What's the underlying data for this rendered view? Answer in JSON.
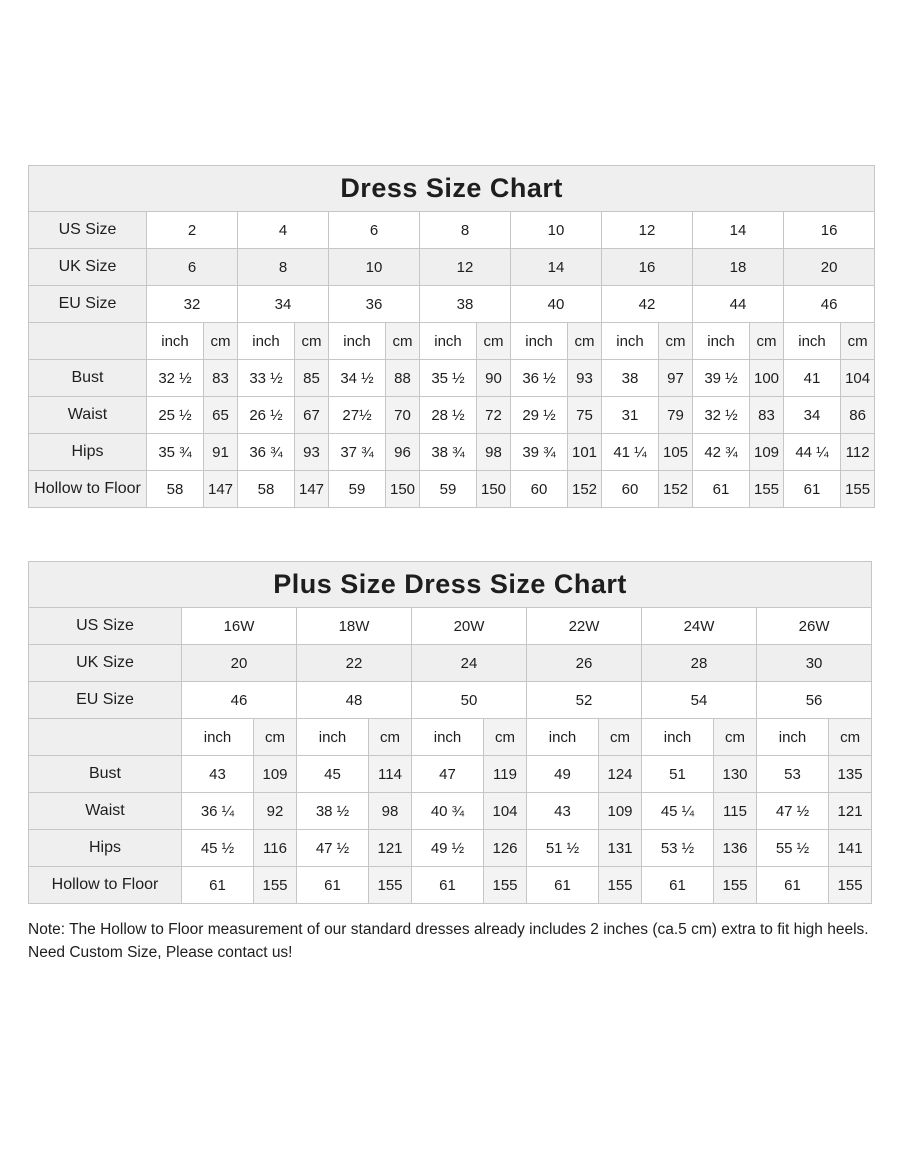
{
  "colors": {
    "header_bg": "#efefef",
    "label_bg": "#efefef",
    "cm_stripe_bg": "#f3f3f3",
    "grid_border": "#c6c6c6",
    "text": "#1e1e1e"
  },
  "tables": [
    {
      "title": "Dress Size Chart",
      "units": {
        "inch": "inch",
        "cm": "cm"
      },
      "size_rows": [
        {
          "label": "US Size",
          "shaded": false,
          "values": [
            "2",
            "4",
            "6",
            "8",
            "10",
            "12",
            "14",
            "16"
          ]
        },
        {
          "label": "UK Size",
          "shaded": true,
          "values": [
            "6",
            "8",
            "10",
            "12",
            "14",
            "16",
            "18",
            "20"
          ]
        },
        {
          "label": "EU Size",
          "shaded": false,
          "values": [
            "32",
            "34",
            "36",
            "38",
            "40",
            "42",
            "44",
            "46"
          ]
        }
      ],
      "measure_rows": [
        {
          "label": "Bust",
          "inch": [
            "32 ½",
            "33 ½",
            "34 ½",
            "35 ½",
            "36 ½",
            "38",
            "39 ½",
            "41"
          ],
          "cm": [
            "83",
            "85",
            "88",
            "90",
            "93",
            "97",
            "100",
            "104"
          ]
        },
        {
          "label": "Waist",
          "inch": [
            "25 ½",
            "26 ½",
            "27½",
            "28 ½",
            "29 ½",
            "31",
            "32 ½",
            "34"
          ],
          "cm": [
            "65",
            "67",
            "70",
            "72",
            "75",
            "79",
            "83",
            "86"
          ]
        },
        {
          "label": "Hips",
          "inch": [
            "35 ¾",
            "36 ¾",
            "37 ¾",
            "38 ¾",
            "39 ¾",
            "41 ¼",
            "42 ¾",
            "44 ¼"
          ],
          "cm": [
            "91",
            "93",
            "96",
            "98",
            "101",
            "105",
            "109",
            "112"
          ]
        },
        {
          "label": "Hollow to Floor",
          "inch": [
            "58",
            "58",
            "59",
            "59",
            "60",
            "60",
            "61",
            "61"
          ],
          "cm": [
            "147",
            "147",
            "150",
            "150",
            "152",
            "152",
            "155",
            "155"
          ]
        }
      ]
    },
    {
      "title": "Plus Size Dress Size Chart",
      "units": {
        "inch": "inch",
        "cm": "cm"
      },
      "size_rows": [
        {
          "label": "US Size",
          "shaded": false,
          "values": [
            "16W",
            "18W",
            "20W",
            "22W",
            "24W",
            "26W"
          ]
        },
        {
          "label": "UK Size",
          "shaded": true,
          "values": [
            "20",
            "22",
            "24",
            "26",
            "28",
            "30"
          ]
        },
        {
          "label": "EU Size",
          "shaded": false,
          "values": [
            "46",
            "48",
            "50",
            "52",
            "54",
            "56"
          ]
        }
      ],
      "measure_rows": [
        {
          "label": "Bust",
          "inch": [
            "43",
            "45",
            "47",
            "49",
            "51",
            "53"
          ],
          "cm": [
            "109",
            "114",
            "119",
            "124",
            "130",
            "135"
          ]
        },
        {
          "label": "Waist",
          "inch": [
            "36 ¼",
            "38 ½",
            "40 ¾",
            "43",
            "45 ¼",
            "47 ½"
          ],
          "cm": [
            "92",
            "98",
            "104",
            "109",
            "115",
            "121"
          ]
        },
        {
          "label": "Hips",
          "inch": [
            "45 ½",
            "47 ½",
            "49 ½",
            "51 ½",
            "53 ½",
            "55 ½"
          ],
          "cm": [
            "116",
            "121",
            "126",
            "131",
            "136",
            "141"
          ]
        },
        {
          "label": "Hollow to Floor",
          "inch": [
            "61",
            "61",
            "61",
            "61",
            "61",
            "61"
          ],
          "cm": [
            "155",
            "155",
            "155",
            "155",
            "155",
            "155"
          ]
        }
      ]
    }
  ],
  "notes": {
    "note": "Note: The Hollow to Floor measurement of our standard dresses already includes 2 inches (ca.5 cm) extra to fit high heels.",
    "custom": "Need Custom Size, Please contact us!"
  }
}
